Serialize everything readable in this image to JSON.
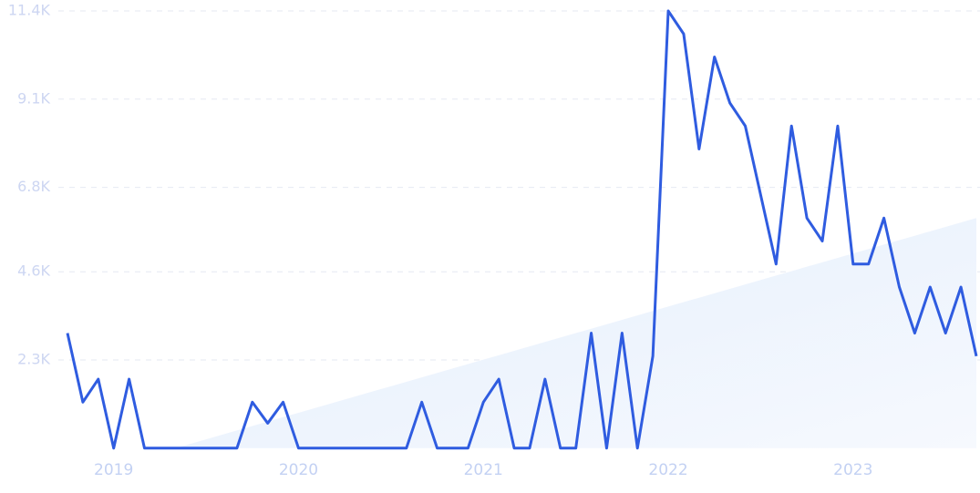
{
  "chart_data": {
    "type": "line",
    "categories": [
      null,
      null,
      null,
      "2019",
      null,
      null,
      null,
      null,
      null,
      null,
      null,
      null,
      null,
      null,
      null,
      "2020",
      null,
      null,
      null,
      null,
      null,
      null,
      null,
      null,
      null,
      null,
      null,
      "2021",
      null,
      null,
      null,
      null,
      null,
      null,
      null,
      null,
      null,
      null,
      null,
      "2022",
      null,
      null,
      null,
      null,
      null,
      null,
      null,
      null,
      null,
      null,
      null,
      "2023",
      null,
      null,
      null,
      null,
      null,
      null,
      null,
      null
    ],
    "series": [
      {
        "color": "#2f5ce0",
        "fill": "line",
        "values": [
          3000,
          1200,
          1800,
          0,
          1800,
          0,
          0,
          0,
          0,
          0,
          0,
          0,
          1200,
          650,
          1200,
          0,
          0,
          0,
          0,
          0,
          0,
          0,
          0,
          1200,
          0,
          0,
          0,
          1200,
          1800,
          0,
          0,
          1800,
          0,
          0,
          3000,
          0,
          3000,
          0,
          2400,
          11400,
          10800,
          7800,
          10200,
          9000,
          8400,
          6600,
          4800,
          8400,
          6000,
          5400,
          8400,
          4800,
          4800,
          6000,
          4200,
          3000,
          4200,
          3000,
          4200,
          2400
        ]
      },
      {
        "color": "#e4eefc",
        "fill": "area",
        "values": [
          null,
          null,
          null,
          null,
          null,
          null,
          null,
          0,
          115,
          231,
          346,
          462,
          577,
          692,
          808,
          923,
          1038,
          1154,
          1269,
          1385,
          1500,
          1615,
          1731,
          1846,
          1962,
          2077,
          2192,
          2308,
          2423,
          2538,
          2654,
          2769,
          2885,
          3000,
          3115,
          3231,
          3346,
          3462,
          3577,
          3692,
          3808,
          3923,
          4038,
          4154,
          4269,
          4385,
          4500,
          4615,
          4731,
          4846,
          4962,
          5077,
          5192,
          5308,
          5423,
          5538,
          5654,
          5769,
          5885,
          6000
        ]
      }
    ],
    "ylim": [
      0,
      11400
    ],
    "yticks": [
      {
        "value": 2300,
        "label": "2.3K"
      },
      {
        "value": 4600,
        "label": "4.6K"
      },
      {
        "value": 6800,
        "label": "6.8K"
      },
      {
        "value": 9100,
        "label": "9.1K"
      },
      {
        "value": 11400,
        "label": "11.4K"
      }
    ],
    "grid": true
  }
}
